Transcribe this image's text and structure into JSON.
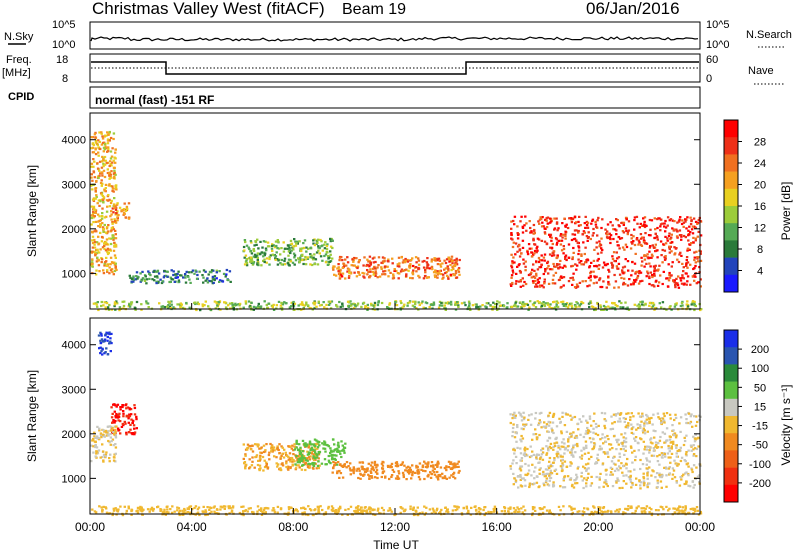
{
  "header": {
    "station": "Christmas Valley West (fitACF)",
    "beam": "Beam 19",
    "date": "06/Jan/2016"
  },
  "nsky_panel": {
    "left_label": "N.Sky",
    "left_ticks": [
      "10^5",
      "10^0"
    ],
    "right_ticks": [
      "10^5",
      "10^0"
    ],
    "right_label": "N.Search"
  },
  "freq_panel": {
    "left_label_1": "Freq.",
    "left_label_2": "[MHz]",
    "left_ticks": [
      "18",
      "8"
    ],
    "right_ticks": [
      "60",
      "0"
    ],
    "right_label": "Nave"
  },
  "cpid": {
    "label": "CPID",
    "program": "normal (fast) -151 RF"
  },
  "colors": {
    "power_scale": [
      "#1a1aff",
      "#2244bb",
      "#2a7a3a",
      "#55aa55",
      "#9ccc3a",
      "#e8d020",
      "#f5a020",
      "#f07020",
      "#ee3018",
      "#ff0000"
    ],
    "velocity_scale": [
      "#1a2ee8",
      "#2a55b0",
      "#2a8a3a",
      "#5cc040",
      "#c8c8c0",
      "#f0b830",
      "#f08a20",
      "#ee6018",
      "#f03010",
      "#ff0000"
    ]
  },
  "chart_data": [
    {
      "type": "heatmap",
      "title": "Power",
      "ylabel": "Slant Range [km]",
      "xlabel": "",
      "x_ticks": [
        "00:00",
        "04:00",
        "08:00",
        "12:00",
        "16:00",
        "20:00",
        "00:00"
      ],
      "y_ticks": [
        "1000",
        "2000",
        "3000",
        "4000"
      ],
      "ylim": [
        200,
        4600
      ],
      "xlim": [
        0,
        24
      ],
      "colorbar": {
        "label": "Power [dB]",
        "ticks": [
          "4",
          "8",
          "12",
          "16",
          "20",
          "24",
          "28"
        ],
        "range": [
          0,
          32
        ]
      },
      "features": [
        {
          "t_start": 0.0,
          "t_end": 1.0,
          "range_low": 1000,
          "range_high": 4200,
          "level": 20
        },
        {
          "t_start": 0.8,
          "t_end": 1.5,
          "range_low": 2200,
          "range_high": 2600,
          "level": 22
        },
        {
          "t_start": 1.5,
          "t_end": 5.5,
          "range_low": 800,
          "range_high": 1100,
          "level": 8
        },
        {
          "t_start": 6.0,
          "t_end": 9.5,
          "range_low": 1200,
          "range_high": 1800,
          "level": 12
        },
        {
          "t_start": 9.5,
          "t_end": 14.5,
          "range_low": 900,
          "range_high": 1400,
          "level": 24
        },
        {
          "t_start": 16.5,
          "t_end": 24.0,
          "range_low": 700,
          "range_high": 2300,
          "level": 28
        },
        {
          "t_start": 0.0,
          "t_end": 24.0,
          "range_low": 200,
          "range_high": 400,
          "level": 14
        }
      ]
    },
    {
      "type": "heatmap",
      "title": "Velocity",
      "ylabel": "Slant Range [km]",
      "xlabel": "Time UT",
      "x_ticks": [
        "00:00",
        "04:00",
        "08:00",
        "12:00",
        "16:00",
        "20:00",
        "00:00"
      ],
      "y_ticks": [
        "1000",
        "2000",
        "3000",
        "4000"
      ],
      "ylim": [
        200,
        4600
      ],
      "xlim": [
        0,
        24
      ],
      "colorbar": {
        "label": "Velocity [m s⁻¹]",
        "ticks": [
          "200",
          "100",
          "50",
          "15",
          "-15",
          "-50",
          "-100",
          "-200"
        ],
        "range": [
          -250,
          250
        ]
      },
      "features": [
        {
          "t_start": 0.3,
          "t_end": 0.8,
          "range_low": 3800,
          "range_high": 4300,
          "level": 200
        },
        {
          "t_start": 0.8,
          "t_end": 1.8,
          "range_low": 2000,
          "range_high": 2700,
          "level": -200
        },
        {
          "t_start": 0.0,
          "t_end": 1.0,
          "range_low": 1400,
          "range_high": 2200,
          "level": 0
        },
        {
          "t_start": 6.0,
          "t_end": 9.0,
          "range_low": 1200,
          "range_high": 1800,
          "level": -50
        },
        {
          "t_start": 8.0,
          "t_end": 10.0,
          "range_low": 1300,
          "range_high": 1900,
          "level": 60
        },
        {
          "t_start": 9.5,
          "t_end": 14.5,
          "range_low": 1000,
          "range_high": 1400,
          "level": -60
        },
        {
          "t_start": 16.5,
          "t_end": 24.0,
          "range_low": 800,
          "range_high": 2500,
          "level": 0
        },
        {
          "t_start": 0.0,
          "t_end": 24.0,
          "range_low": 200,
          "range_high": 400,
          "level": -40
        }
      ]
    }
  ]
}
